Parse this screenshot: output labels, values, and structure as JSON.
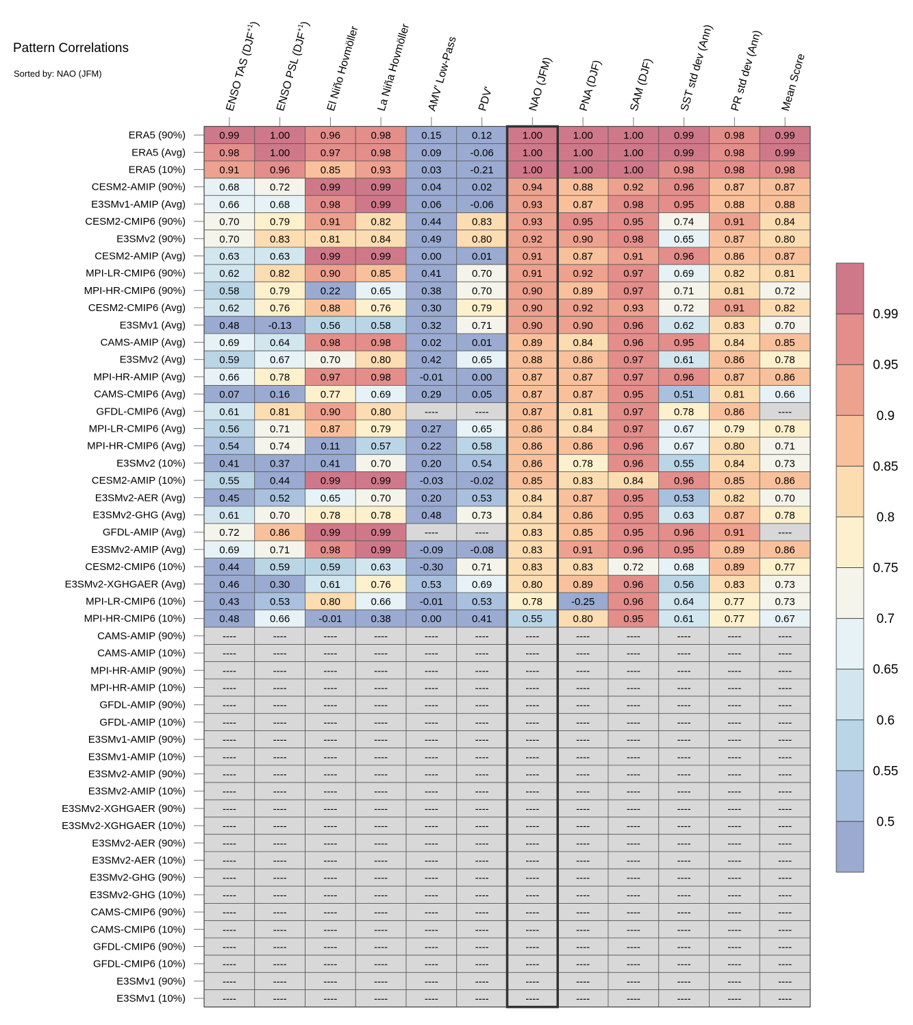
{
  "title": "Pattern Correlations",
  "subtitle": "Sorted by: NAO (JFM)",
  "chart_data": {
    "type": "heatmap",
    "missing_label": "----",
    "highlight_column": "NAO (JFM)",
    "columns": [
      {
        "text": "ENSO TAS (DJF",
        "sup": "+1",
        "tail": ")"
      },
      {
        "text": "ENSO PSL (DJF",
        "sup": "+1",
        "tail": ")"
      },
      {
        "text": "El Niño Hovmöller",
        "sup": "",
        "tail": ""
      },
      {
        "text": "La Niña Hovmöller",
        "sup": "",
        "tail": ""
      },
      {
        "text": "AMV' Low-Pass",
        "sup": "",
        "tail": ""
      },
      {
        "text": "PDV'",
        "sup": "",
        "tail": ""
      },
      {
        "text": "NAO (JFM)",
        "sup": "",
        "tail": ""
      },
      {
        "text": "PNA (DJF)",
        "sup": "",
        "tail": ""
      },
      {
        "text": "SAM (DJF)",
        "sup": "",
        "tail": ""
      },
      {
        "text": "SST std dev (Ann)",
        "sup": "",
        "tail": ""
      },
      {
        "text": "PR std dev (Ann)",
        "sup": "",
        "tail": ""
      },
      {
        "text": "Mean Score",
        "sup": "",
        "tail": ""
      }
    ],
    "rows": [
      {
        "label": "ERA5 (90%)",
        "values": [
          0.99,
          1.0,
          0.96,
          0.98,
          0.15,
          0.12,
          1.0,
          1.0,
          1.0,
          0.99,
          0.98,
          0.99
        ]
      },
      {
        "label": "ERA5 (Avg)",
        "values": [
          0.98,
          1.0,
          0.97,
          0.98,
          0.09,
          -0.06,
          1.0,
          1.0,
          1.0,
          0.99,
          0.98,
          0.99
        ]
      },
      {
        "label": "ERA5 (10%)",
        "values": [
          0.91,
          0.96,
          0.85,
          0.93,
          0.03,
          -0.21,
          1.0,
          1.0,
          1.0,
          0.98,
          0.98,
          0.98
        ]
      },
      {
        "label": "CESM2-AMIP (90%)",
        "values": [
          0.68,
          0.72,
          0.99,
          0.99,
          0.04,
          0.02,
          0.94,
          0.88,
          0.92,
          0.96,
          0.87,
          0.87
        ]
      },
      {
        "label": "E3SMv1-AMIP (Avg)",
        "values": [
          0.66,
          0.68,
          0.98,
          0.99,
          0.06,
          -0.06,
          0.93,
          0.87,
          0.98,
          0.95,
          0.88,
          0.88
        ]
      },
      {
        "label": "CESM2-CMIP6 (90%)",
        "values": [
          0.7,
          0.79,
          0.91,
          0.82,
          0.44,
          0.83,
          0.93,
          0.95,
          0.95,
          0.74,
          0.91,
          0.84
        ]
      },
      {
        "label": "E3SMv2 (90%)",
        "values": [
          0.7,
          0.83,
          0.81,
          0.84,
          0.49,
          0.8,
          0.92,
          0.9,
          0.98,
          0.65,
          0.87,
          0.8
        ]
      },
      {
        "label": "CESM2-AMIP (Avg)",
        "values": [
          0.63,
          0.63,
          0.99,
          0.99,
          -0.0,
          0.01,
          0.91,
          0.87,
          0.91,
          0.96,
          0.86,
          0.87
        ]
      },
      {
        "label": "MPI-LR-CMIP6 (90%)",
        "values": [
          0.62,
          0.82,
          0.9,
          0.85,
          0.41,
          0.7,
          0.91,
          0.92,
          0.97,
          0.69,
          0.82,
          0.81
        ]
      },
      {
        "label": "MPI-HR-CMIP6 (90%)",
        "values": [
          0.58,
          0.79,
          0.22,
          0.65,
          0.38,
          0.7,
          0.9,
          0.89,
          0.97,
          0.71,
          0.81,
          0.72
        ]
      },
      {
        "label": "CESM2-CMIP6 (Avg)",
        "values": [
          0.62,
          0.76,
          0.88,
          0.76,
          0.3,
          0.79,
          0.9,
          0.92,
          0.93,
          0.72,
          0.91,
          0.82
        ]
      },
      {
        "label": "E3SMv1 (Avg)",
        "values": [
          0.48,
          -0.13,
          0.56,
          0.58,
          0.32,
          0.71,
          0.9,
          0.9,
          0.96,
          0.62,
          0.83,
          0.7
        ]
      },
      {
        "label": "CAMS-AMIP (Avg)",
        "values": [
          0.69,
          0.64,
          0.98,
          0.98,
          0.02,
          0.01,
          0.89,
          0.84,
          0.96,
          0.95,
          0.84,
          0.85
        ]
      },
      {
        "label": "E3SMv2 (Avg)",
        "values": [
          0.59,
          0.67,
          0.7,
          0.8,
          0.42,
          0.65,
          0.88,
          0.86,
          0.97,
          0.61,
          0.86,
          0.78
        ]
      },
      {
        "label": "MPI-HR-AMIP (Avg)",
        "values": [
          0.66,
          0.78,
          0.97,
          0.98,
          -0.01,
          -0.0,
          0.87,
          0.87,
          0.97,
          0.96,
          0.87,
          0.86
        ]
      },
      {
        "label": "CAMS-CMIP6 (Avg)",
        "values": [
          0.07,
          0.16,
          0.77,
          0.69,
          0.29,
          0.05,
          0.87,
          0.87,
          0.95,
          0.51,
          0.81,
          0.66
        ]
      },
      {
        "label": "GFDL-CMIP6 (Avg)",
        "values": [
          0.61,
          0.81,
          0.9,
          0.8,
          null,
          null,
          0.87,
          0.81,
          0.97,
          0.78,
          0.86,
          null
        ]
      },
      {
        "label": "MPI-LR-CMIP6 (Avg)",
        "values": [
          0.56,
          0.71,
          0.87,
          0.79,
          0.27,
          0.65,
          0.86,
          0.84,
          0.97,
          0.67,
          0.79,
          0.78
        ]
      },
      {
        "label": "MPI-HR-CMIP6 (Avg)",
        "values": [
          0.54,
          0.74,
          0.11,
          0.57,
          0.22,
          0.58,
          0.86,
          0.86,
          0.96,
          0.67,
          0.8,
          0.71
        ]
      },
      {
        "label": "E3SMv2 (10%)",
        "values": [
          0.41,
          0.37,
          0.41,
          0.7,
          0.2,
          0.54,
          0.86,
          0.78,
          0.96,
          0.55,
          0.84,
          0.73
        ]
      },
      {
        "label": "CESM2-AMIP (10%)",
        "values": [
          0.55,
          0.44,
          0.99,
          0.99,
          -0.03,
          -0.02,
          0.85,
          0.83,
          0.84,
          0.96,
          0.85,
          0.86
        ]
      },
      {
        "label": "E3SMv2-AER (Avg)",
        "values": [
          0.45,
          0.52,
          0.65,
          0.7,
          0.2,
          0.53,
          0.84,
          0.87,
          0.95,
          0.53,
          0.82,
          0.7
        ]
      },
      {
        "label": "E3SMv2-GHG (Avg)",
        "values": [
          0.61,
          0.7,
          0.78,
          0.78,
          0.48,
          0.73,
          0.84,
          0.86,
          0.95,
          0.63,
          0.87,
          0.78
        ]
      },
      {
        "label": "GFDL-AMIP (Avg)",
        "values": [
          0.72,
          0.86,
          0.99,
          0.99,
          null,
          null,
          0.83,
          0.85,
          0.95,
          0.96,
          0.91,
          null
        ]
      },
      {
        "label": "E3SMv2-AMIP (Avg)",
        "values": [
          0.69,
          0.71,
          0.98,
          0.99,
          -0.09,
          -0.08,
          0.83,
          0.91,
          0.96,
          0.95,
          0.89,
          0.86
        ]
      },
      {
        "label": "CESM2-CMIP6 (10%)",
        "values": [
          0.44,
          0.59,
          0.59,
          0.63,
          -0.3,
          0.71,
          0.83,
          0.83,
          0.72,
          0.68,
          0.89,
          0.77
        ]
      },
      {
        "label": "E3SMv2-XGHGAER (Avg)",
        "values": [
          0.46,
          0.3,
          0.61,
          0.76,
          0.53,
          0.69,
          0.8,
          0.89,
          0.96,
          0.56,
          0.83,
          0.73
        ]
      },
      {
        "label": "MPI-LR-CMIP6 (10%)",
        "values": [
          0.43,
          0.53,
          0.8,
          0.66,
          -0.01,
          0.53,
          0.78,
          -0.25,
          0.96,
          0.64,
          0.77,
          0.73
        ]
      },
      {
        "label": "MPI-HR-CMIP6 (10%)",
        "values": [
          0.48,
          0.66,
          -0.01,
          0.38,
          0.0,
          0.41,
          0.55,
          0.8,
          0.95,
          0.61,
          0.77,
          0.67
        ]
      },
      {
        "label": "CAMS-AMIP (90%)",
        "values": [
          null,
          null,
          null,
          null,
          null,
          null,
          null,
          null,
          null,
          null,
          null,
          null
        ]
      },
      {
        "label": "CAMS-AMIP (10%)",
        "values": [
          null,
          null,
          null,
          null,
          null,
          null,
          null,
          null,
          null,
          null,
          null,
          null
        ]
      },
      {
        "label": "MPI-HR-AMIP (90%)",
        "values": [
          null,
          null,
          null,
          null,
          null,
          null,
          null,
          null,
          null,
          null,
          null,
          null
        ]
      },
      {
        "label": "MPI-HR-AMIP (10%)",
        "values": [
          null,
          null,
          null,
          null,
          null,
          null,
          null,
          null,
          null,
          null,
          null,
          null
        ]
      },
      {
        "label": "GFDL-AMIP (90%)",
        "values": [
          null,
          null,
          null,
          null,
          null,
          null,
          null,
          null,
          null,
          null,
          null,
          null
        ]
      },
      {
        "label": "GFDL-AMIP (10%)",
        "values": [
          null,
          null,
          null,
          null,
          null,
          null,
          null,
          null,
          null,
          null,
          null,
          null
        ]
      },
      {
        "label": "E3SMv1-AMIP (90%)",
        "values": [
          null,
          null,
          null,
          null,
          null,
          null,
          null,
          null,
          null,
          null,
          null,
          null
        ]
      },
      {
        "label": "E3SMv1-AMIP (10%)",
        "values": [
          null,
          null,
          null,
          null,
          null,
          null,
          null,
          null,
          null,
          null,
          null,
          null
        ]
      },
      {
        "label": "E3SMv2-AMIP (90%)",
        "values": [
          null,
          null,
          null,
          null,
          null,
          null,
          null,
          null,
          null,
          null,
          null,
          null
        ]
      },
      {
        "label": "E3SMv2-AMIP (10%)",
        "values": [
          null,
          null,
          null,
          null,
          null,
          null,
          null,
          null,
          null,
          null,
          null,
          null
        ]
      },
      {
        "label": "E3SMv2-XGHGAER (90%)",
        "values": [
          null,
          null,
          null,
          null,
          null,
          null,
          null,
          null,
          null,
          null,
          null,
          null
        ]
      },
      {
        "label": "E3SMv2-XGHGAER (10%)",
        "values": [
          null,
          null,
          null,
          null,
          null,
          null,
          null,
          null,
          null,
          null,
          null,
          null
        ]
      },
      {
        "label": "E3SMv2-AER (90%)",
        "values": [
          null,
          null,
          null,
          null,
          null,
          null,
          null,
          null,
          null,
          null,
          null,
          null
        ]
      },
      {
        "label": "E3SMv2-AER (10%)",
        "values": [
          null,
          null,
          null,
          null,
          null,
          null,
          null,
          null,
          null,
          null,
          null,
          null
        ]
      },
      {
        "label": "E3SMv2-GHG (90%)",
        "values": [
          null,
          null,
          null,
          null,
          null,
          null,
          null,
          null,
          null,
          null,
          null,
          null
        ]
      },
      {
        "label": "E3SMv2-GHG (10%)",
        "values": [
          null,
          null,
          null,
          null,
          null,
          null,
          null,
          null,
          null,
          null,
          null,
          null
        ]
      },
      {
        "label": "CAMS-CMIP6 (90%)",
        "values": [
          null,
          null,
          null,
          null,
          null,
          null,
          null,
          null,
          null,
          null,
          null,
          null
        ]
      },
      {
        "label": "CAMS-CMIP6 (10%)",
        "values": [
          null,
          null,
          null,
          null,
          null,
          null,
          null,
          null,
          null,
          null,
          null,
          null
        ]
      },
      {
        "label": "GFDL-CMIP6 (90%)",
        "values": [
          null,
          null,
          null,
          null,
          null,
          null,
          null,
          null,
          null,
          null,
          null,
          null
        ]
      },
      {
        "label": "GFDL-CMIP6 (10%)",
        "values": [
          null,
          null,
          null,
          null,
          null,
          null,
          null,
          null,
          null,
          null,
          null,
          null
        ]
      },
      {
        "label": "E3SMv1 (90%)",
        "values": [
          null,
          null,
          null,
          null,
          null,
          null,
          null,
          null,
          null,
          null,
          null,
          null
        ]
      },
      {
        "label": "E3SMv1 (10%)",
        "values": [
          null,
          null,
          null,
          null,
          null,
          null,
          null,
          null,
          null,
          null,
          null,
          null
        ]
      }
    ],
    "colorbar": {
      "ticks": [
        "0.99",
        "0.95",
        "0.9",
        "0.85",
        "0.8",
        "0.75",
        "0.7",
        "0.65",
        "0.6",
        "0.55",
        "0.5"
      ],
      "levels": [
        0.5,
        0.55,
        0.6,
        0.65,
        0.7,
        0.75,
        0.8,
        0.85,
        0.9,
        0.95,
        0.99
      ],
      "colors": [
        "#9aaad1",
        "#a9c1de",
        "#bad5e6",
        "#d2e6ef",
        "#e6f2f5",
        "#f4f4ea",
        "#fdf0cd",
        "#fcdcb1",
        "#f8c19c",
        "#eda18f",
        "#e38e8b",
        "#cf7889"
      ],
      "missing_color": "#d8d8d8"
    }
  }
}
